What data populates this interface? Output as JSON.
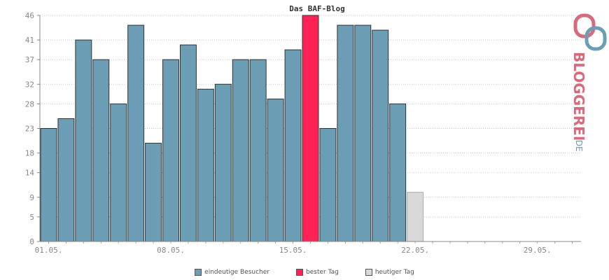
{
  "chart_data": {
    "type": "bar",
    "title": "Das BAF-Blog",
    "y_ticks": [
      0,
      5,
      9,
      14,
      18,
      23,
      28,
      32,
      37,
      41,
      46
    ],
    "ylim": [
      0,
      46
    ],
    "x_tick_labels": [
      "01.05.",
      "08.05.",
      "15.05.",
      "22.05.",
      "29.05."
    ],
    "x_tick_days": [
      1,
      8,
      15,
      22,
      29
    ],
    "days_in_view": 31,
    "grid": true,
    "legend_position": "bottom",
    "series": [
      {
        "name": "eindeutige Besucher",
        "color": "#6b9db4",
        "days": [
          1,
          2,
          3,
          4,
          5,
          6,
          7,
          8,
          9,
          10,
          11,
          12,
          13,
          14,
          15,
          17,
          18,
          19,
          20,
          21
        ],
        "values": [
          23,
          25,
          41,
          37,
          28,
          44,
          20,
          37,
          40,
          31,
          32,
          37,
          37,
          29,
          39,
          23,
          44,
          44,
          43,
          28
        ]
      },
      {
        "name": "bester Tag",
        "color": "#ff2255",
        "days": [
          16
        ],
        "values": [
          46
        ]
      },
      {
        "name": "heutiger Tag",
        "color": "#d9d9d9",
        "days": [
          22
        ],
        "values": [
          10
        ]
      }
    ]
  },
  "legend": [
    {
      "label": "eindeutige Besucher",
      "color": "#6b9db4"
    },
    {
      "label": "bester Tag",
      "color": "#ff2255"
    },
    {
      "label": "heutiger Tag",
      "color": "#d9d9d9"
    }
  ],
  "logo": {
    "text": "BLOGGEREI",
    "suffix": ".DE",
    "color": "#d86a7e",
    "accent": "#6b9db4"
  }
}
